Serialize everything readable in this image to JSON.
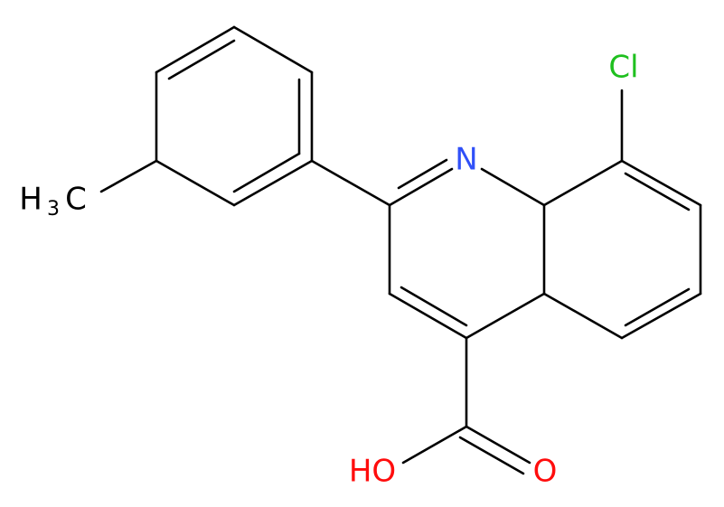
{
  "atoms": {
    "chlorine": "Cl",
    "nitrogen": "N",
    "hydroxyl": "HO",
    "carbonyl_oxygen": "O",
    "methyl": {
      "h": "H",
      "count": "3",
      "c": "C"
    }
  }
}
